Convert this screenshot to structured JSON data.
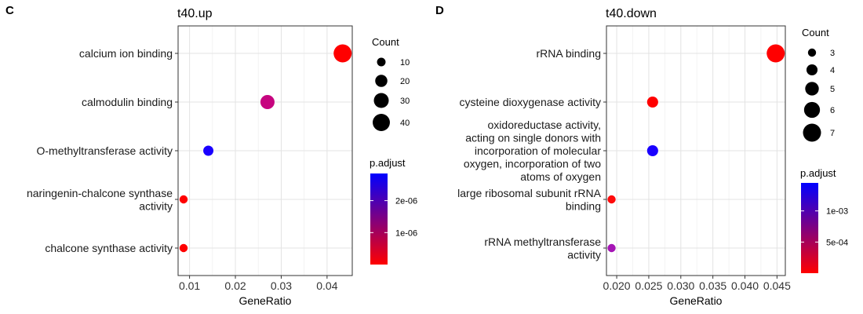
{
  "chart_data": [
    {
      "type": "scatter",
      "panel_label": "C",
      "title": "t40.up",
      "xlabel": "GeneRatio",
      "xlim": [
        0.0075,
        0.0455
      ],
      "x_ticks": [
        0.01,
        0.02,
        0.03,
        0.04
      ],
      "x_tick_labels": [
        "0.01",
        "0.02",
        "0.03",
        "0.04"
      ],
      "categories": [
        "calcium ion binding",
        "calmodulin binding",
        "O-methyltransferase activity",
        "naringenin-chalcone synthase activity",
        "chalcone synthase activity"
      ],
      "category_display_lines": [
        [
          "calcium ion binding"
        ],
        [
          "calmodulin binding"
        ],
        [
          "O-methyltransferase activity"
        ],
        [
          "naringenin-chalcone synthase",
          "activity"
        ],
        [
          "chalcone synthase activity"
        ]
      ],
      "points": [
        {
          "term": "calcium ion binding",
          "gene_ratio": 0.0434,
          "count": 44,
          "p_adjust": 1e-08,
          "color": "#ff0000"
        },
        {
          "term": "calmodulin binding",
          "gene_ratio": 0.027,
          "count": 27,
          "p_adjust": 1.4e-06,
          "color": "#c6047f"
        },
        {
          "term": "O-methyltransferase activity",
          "gene_ratio": 0.0141,
          "count": 14,
          "p_adjust": 2.7e-06,
          "color": "#1a00ff"
        },
        {
          "term": "naringenin-chalcone synthase activity",
          "gene_ratio": 0.0087,
          "count": 9,
          "p_adjust": 1e-08,
          "color": "#ff0000"
        },
        {
          "term": "chalcone synthase activity",
          "gene_ratio": 0.0087,
          "count": 9,
          "p_adjust": 1e-08,
          "color": "#ff0000"
        }
      ],
      "size_legend": {
        "title": "Count",
        "values": [
          10,
          20,
          30,
          40
        ],
        "labels": [
          "10",
          "20",
          "30",
          "40"
        ]
      },
      "color_legend": {
        "title": "p.adjust",
        "range": [
          0,
          2.85e-06
        ],
        "ticks": [
          1e-06,
          2e-06
        ],
        "tick_labels": [
          "1e-06",
          "2e-06"
        ],
        "low_color": "#ff0000",
        "high_color": "#0000ff"
      },
      "grid": true,
      "legend_position": "right"
    },
    {
      "type": "scatter",
      "panel_label": "D",
      "title": "t40.down",
      "xlabel": "GeneRatio",
      "xlim": [
        0.0184,
        0.0463
      ],
      "x_ticks": [
        0.02,
        0.025,
        0.03,
        0.035,
        0.04,
        0.045
      ],
      "x_tick_labels": [
        "0.020",
        "0.025",
        "0.030",
        "0.035",
        "0.040",
        "0.045"
      ],
      "categories": [
        "rRNA binding",
        "cysteine dioxygenase activity",
        "oxidoreductase activity, acting on single donors with incorporation of molecular oxygen, incorporation of two atoms of oxygen",
        "large ribosomal subunit rRNA binding",
        "rRNA methyltransferase activity"
      ],
      "category_display_lines": [
        [
          "rRNA binding"
        ],
        [
          "cysteine dioxygenase activity"
        ],
        [
          "oxidoreductase activity,",
          "acting on single donors with",
          "incorporation of molecular",
          "oxygen, incorporation of two",
          "atoms of oxygen"
        ],
        [
          "large ribosomal subunit rRNA",
          "binding"
        ],
        [
          "rRNA methyltransferase",
          "activity"
        ]
      ],
      "points": [
        {
          "term": "rRNA binding",
          "gene_ratio": 0.0448,
          "count": 7,
          "p_adjust": 2e-05,
          "color": "#ff0000"
        },
        {
          "term": "cysteine dioxygenase activity",
          "gene_ratio": 0.0256,
          "count": 4,
          "p_adjust": 2e-05,
          "color": "#ff0000"
        },
        {
          "term": "oxidoreductase activity, acting on single donors with incorporation of molecular oxygen, incorporation of two atoms of oxygen",
          "gene_ratio": 0.0256,
          "count": 4,
          "p_adjust": 0.00142,
          "color": "#1a00ff"
        },
        {
          "term": "large ribosomal subunit rRNA binding",
          "gene_ratio": 0.0192,
          "count": 3,
          "p_adjust": 3e-05,
          "color": "#ff0a0a"
        },
        {
          "term": "rRNA methyltransferase activity",
          "gene_ratio": 0.0192,
          "count": 3,
          "p_adjust": 0.0009,
          "color": "#a515b5"
        }
      ],
      "size_legend": {
        "title": "Count",
        "values": [
          3,
          4,
          5,
          6,
          7
        ],
        "labels": [
          "3",
          "4",
          "5",
          "6",
          "7"
        ]
      },
      "color_legend": {
        "title": "p.adjust",
        "range": [
          0,
          0.00145
        ],
        "ticks": [
          0.0005,
          0.001
        ],
        "tick_labels": [
          "5e-04",
          "1e-03"
        ],
        "low_color": "#ff0000",
        "high_color": "#0000ff"
      },
      "grid": true,
      "legend_position": "right"
    }
  ]
}
